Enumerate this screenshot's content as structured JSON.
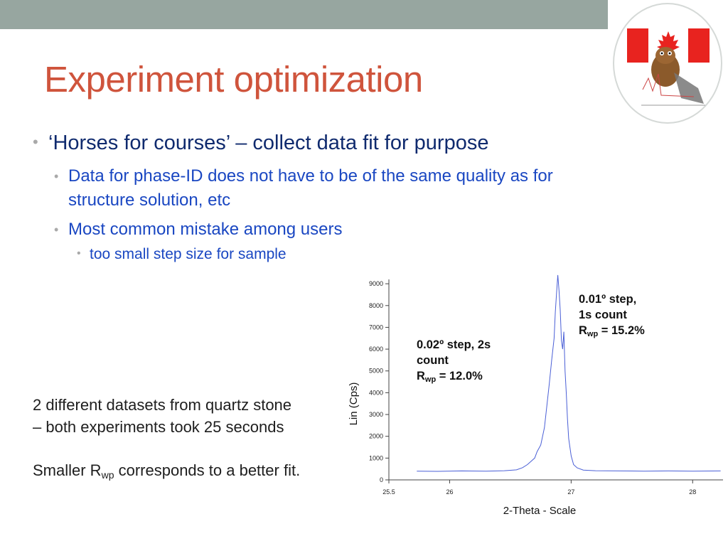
{
  "slide": {
    "title": "Experiment optimization",
    "bullets": {
      "b1": "‘Horses for courses’ – collect data fit for purpose",
      "b1_1_line1": "Data for phase-ID does not have to be of the same quality as for",
      "b1_1_line2": "structure solution, etc",
      "b1_2": "Most common mistake among users",
      "b1_2_1": "too small step size for sample"
    },
    "bullet_glyph": "•",
    "side_text": {
      "line1": "2 different datasets from quartz stone",
      "line2": "– both experiments took 25 seconds",
      "line3_pre": "Smaller R",
      "line3_sub": "wp",
      "line3_post": " corresponds to a better fit."
    },
    "annotations": {
      "a1_line1": "0.02º step, 2s",
      "a1_line2": "count",
      "a1_r": "R",
      "a1_sub": "wp",
      "a1_val": " = 12.0%",
      "a2_line1": "0.01º step,",
      "a2_line2": "1s count",
      "a2_r": "R",
      "a2_sub": "wp",
      "a2_val": " = 15.2%"
    },
    "colors": {
      "title": "#cf543c",
      "top_bar": "#97a6a0",
      "bullet_lvl1": "#0f2a6e",
      "bullet_lvl2": "#1a47c2",
      "line": "#4a5fd6"
    },
    "logo": {
      "icon": "canadian-flag-beaver-logo"
    }
  },
  "chart_data": {
    "type": "line",
    "xlabel": "2-Theta - Scale",
    "ylabel": "Lin (Cps)",
    "xlim": [
      25.5,
      28.25
    ],
    "ylim": [
      0,
      9200
    ],
    "x_ticks": [
      25.5,
      26,
      27,
      28
    ],
    "x_tick_labels": [
      "25.5",
      "26",
      "27",
      "28"
    ],
    "y_ticks": [
      0,
      1000,
      2000,
      3000,
      4000,
      5000,
      6000,
      7000,
      8000,
      9000
    ],
    "y_tick_labels": [
      "0",
      "1000",
      "2000",
      "3000",
      "4000",
      "5000",
      "6000",
      "7000",
      "8000",
      "9000"
    ],
    "grid": false,
    "series": [
      {
        "color": "#4a5fd6",
        "x": [
          25.73,
          25.9,
          26.1,
          26.3,
          26.45,
          26.55,
          26.6,
          26.64,
          26.67,
          26.7,
          26.72,
          26.75,
          26.78,
          26.8,
          26.82,
          26.84,
          26.86,
          26.87,
          26.88,
          26.89,
          26.9,
          26.91,
          26.92,
          26.93,
          26.94,
          26.95,
          26.96,
          26.97,
          26.98,
          27.0,
          27.02,
          27.05,
          27.1,
          27.2,
          27.4,
          27.6,
          27.8,
          28.0,
          28.23
        ],
        "y": [
          400,
          390,
          410,
          400,
          420,
          460,
          560,
          700,
          850,
          1000,
          1300,
          1600,
          2400,
          3400,
          4400,
          5500,
          6500,
          7700,
          8600,
          9400,
          8700,
          7800,
          6400,
          6000,
          6800,
          5000,
          4000,
          2800,
          1900,
          1100,
          700,
          550,
          450,
          420,
          410,
          400,
          410,
          400,
          410
        ]
      }
    ]
  }
}
